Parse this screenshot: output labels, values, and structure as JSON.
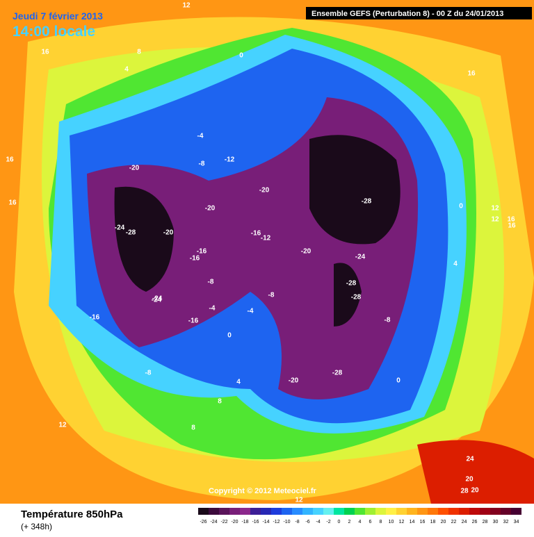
{
  "header": {
    "date": "Jeudi 7 février 2013",
    "time": "14:00 locale",
    "run": "Ensemble GEFS (Perturbation 8)  -  00 Z du 24/01/2013"
  },
  "copyright": "Copyright © 2012 Meteociel.fr",
  "footer": {
    "title": "Température 850hPa",
    "lead": "(+ 348h)"
  },
  "scale": {
    "labels": [
      -26,
      -24,
      -22,
      -20,
      -18,
      -16,
      -14,
      -12,
      -10,
      -8,
      -6,
      -4,
      -2,
      0,
      2,
      4,
      6,
      8,
      10,
      12,
      14,
      16,
      18,
      20,
      22,
      24,
      26,
      28,
      30,
      32,
      34
    ],
    "colors": [
      "#1a0a1a",
      "#3c0a3c",
      "#5a145a",
      "#781e78",
      "#8c288c",
      "#3c1e96",
      "#2828b4",
      "#1e3cdc",
      "#1e64f0",
      "#288cff",
      "#32b4ff",
      "#46d2ff",
      "#64f0f0",
      "#00e6a0",
      "#00d250",
      "#50e632",
      "#a0f032",
      "#dcf53c",
      "#fff046",
      "#ffd232",
      "#ffb41e",
      "#ff9614",
      "#ff780a",
      "#ff5000",
      "#f03200",
      "#dc1e00",
      "#be0a0a",
      "#a00014",
      "#82001e",
      "#640028",
      "#460032"
    ]
  },
  "contour_labels": [
    "12",
    "16",
    "8",
    "4",
    "0",
    "-4",
    "-8",
    "-12",
    "-20",
    "-20",
    "-24",
    "-28",
    "-20",
    "-20",
    "-28",
    "-24",
    "-28",
    "-28",
    "-20",
    "-24",
    "-28",
    "-20",
    "-16",
    "-12",
    "-16",
    "-16",
    "-8",
    "-4",
    "-16",
    "-8",
    "-8",
    "0",
    "4",
    "8",
    "12",
    "8",
    "12",
    "16",
    "16",
    "16",
    "0",
    "4",
    "12",
    "16",
    "20",
    "24",
    "20",
    "28",
    "16",
    "12",
    "-4",
    "0",
    "-8",
    "-16",
    "-24"
  ]
}
